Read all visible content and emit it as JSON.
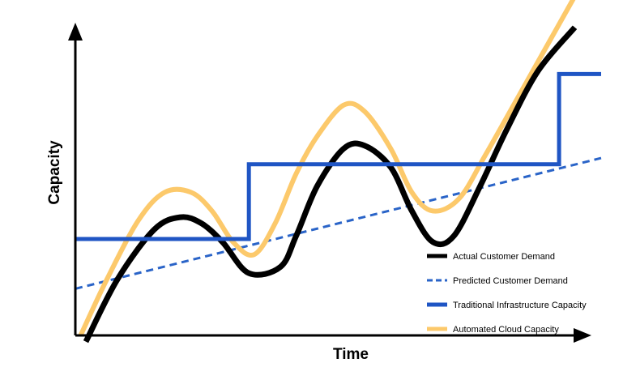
{
  "chart_data": {
    "type": "line",
    "title": "",
    "xlabel": "Time",
    "ylabel": "Capacity",
    "xlim": [
      0,
      100
    ],
    "ylim": [
      0,
      100
    ],
    "grid": false,
    "legend_position": "bottom-right",
    "series": [
      {
        "name": "Actual Customer Demand",
        "color": "#000000",
        "style": "solid",
        "x": [
          2,
          8,
          15,
          20,
          24,
          28,
          33,
          39,
          42,
          46,
          51,
          55,
          60,
          64,
          68,
          72,
          77,
          82,
          88,
          95
        ],
        "y": [
          -2,
          18,
          34,
          38,
          36,
          30,
          20,
          22,
          32,
          48,
          60,
          61,
          54,
          40,
          30,
          32,
          48,
          66,
          85,
          99
        ]
      },
      {
        "name": "Predicted Customer Demand",
        "color": "#2a64c8",
        "style": "dashed",
        "x": [
          0,
          100
        ],
        "y": [
          15,
          57
        ]
      },
      {
        "name": "Traditional Infrastructure Capacity",
        "color": "#1f55c4",
        "style": "step",
        "x": [
          0,
          33,
          33,
          92,
          92,
          100
        ],
        "y": [
          31,
          31,
          55,
          55,
          84,
          84
        ]
      },
      {
        "name": "Automated Cloud Capacity",
        "color": "#fcc96b",
        "style": "solid",
        "x": [
          1,
          6,
          12,
          17,
          22,
          26,
          30,
          34,
          38,
          42,
          46,
          51,
          55,
          60,
          64,
          68,
          73,
          78,
          84,
          90,
          95
        ],
        "y": [
          0,
          18,
          37,
          46,
          46,
          40,
          30,
          26,
          36,
          52,
          64,
          74,
          72,
          60,
          46,
          40,
          44,
          58,
          76,
          94,
          109
        ]
      }
    ]
  }
}
